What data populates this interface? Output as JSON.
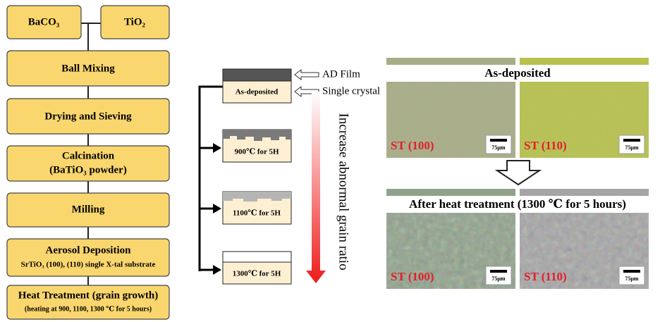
{
  "flowchart": {
    "inputs": [
      "BaCO₃",
      "TiO₂"
    ],
    "steps": [
      {
        "title": "Ball Mixing"
      },
      {
        "title": "Drying and Sieving"
      },
      {
        "title": "Calcination",
        "subtitle": "(BaTiO₃ powder)"
      },
      {
        "title": "Milling"
      },
      {
        "title": "Aerosol Deposition",
        "subtitle": "SrTiO₃ (100), (110) single X-tal substrate"
      },
      {
        "title": "Heat Treatment (grain growth)",
        "subtitle": "(heating at 900, 1100, 1300 ℃ for 5 hours)"
      }
    ]
  },
  "schematic": {
    "layer_labels": [
      "AD Film",
      "Single crystal"
    ],
    "samples": [
      "As-deposited",
      "900℃ for 5H",
      "1100℃ for 5H",
      "1300℃ for 5H"
    ],
    "trend_label": "Increase abnormal grain ratio"
  },
  "micrographs": {
    "groups": [
      {
        "title": "As-deposited",
        "images": [
          {
            "label": "ST (100)",
            "scale_bar": "75μm"
          },
          {
            "label": "ST (110)",
            "scale_bar": "75μm"
          }
        ]
      },
      {
        "title": "After heat treatment (1300 ℃ for 5 hours)",
        "images": [
          {
            "label": "ST (100)",
            "scale_bar": "75μm"
          },
          {
            "label": "ST (110)",
            "scale_bar": "75μm"
          }
        ]
      }
    ]
  }
}
